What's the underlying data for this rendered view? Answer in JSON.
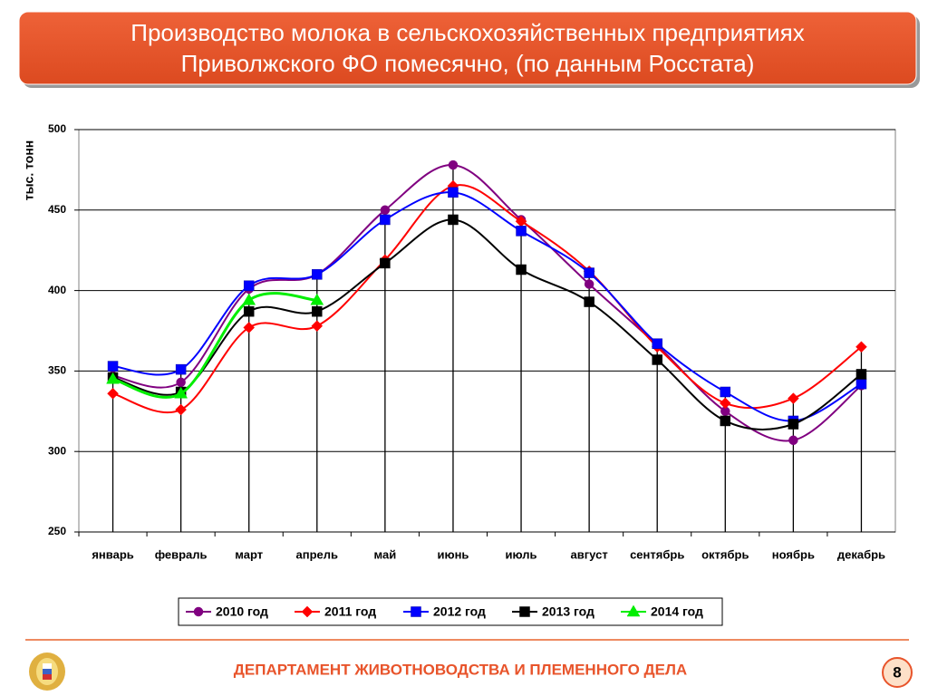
{
  "header": {
    "title": [
      "Производство молока в сельскохозяйственных предприятиях",
      "Приволжского ФО помесячно, (по данным Росстата)"
    ]
  },
  "chart_data": {
    "type": "line",
    "ylabel": "тыс. тонн",
    "categories": [
      "январь",
      "февраль",
      "март",
      "апрель",
      "май",
      "июнь",
      "июль",
      "август",
      "сентябрь",
      "октябрь",
      "ноябрь",
      "декабрь"
    ],
    "series": [
      {
        "name": "2010 год",
        "color": "#800080",
        "marker": "circle",
        "values": [
          347,
          343,
          401,
          410,
          450,
          478,
          444,
          404,
          366,
          325,
          307,
          341
        ]
      },
      {
        "name": "2011 год",
        "color": "#ff0000",
        "marker": "diamond",
        "values": [
          336,
          326,
          377,
          378,
          419,
          465,
          443,
          412,
          365,
          330,
          333,
          365
        ]
      },
      {
        "name": "2012 год",
        "color": "#0000ff",
        "marker": "square",
        "values": [
          353,
          351,
          403,
          410,
          444,
          461,
          437,
          411,
          367,
          337,
          319,
          342
        ]
      },
      {
        "name": "2013 год",
        "color": "#000000",
        "marker": "square",
        "values": [
          346,
          337,
          387,
          387,
          417,
          444,
          413,
          393,
          357,
          319,
          317,
          348
        ]
      },
      {
        "name": "2014 год",
        "color": "#00ee00",
        "marker": "triangle",
        "values": [
          345,
          336,
          394,
          394,
          null,
          null,
          null,
          null,
          null,
          null,
          null,
          null
        ]
      }
    ],
    "ylim": [
      250,
      500
    ],
    "yticks": [
      250,
      300,
      350,
      400,
      450,
      500
    ],
    "grid": true,
    "legend": "bottom",
    "drop_lines": true
  },
  "footer": {
    "text": "ДЕПАРТАМЕНТ ЖИВОТНОВОДСТВА И ПЛЕМЕННОГО ДЕЛА",
    "page": "8"
  }
}
